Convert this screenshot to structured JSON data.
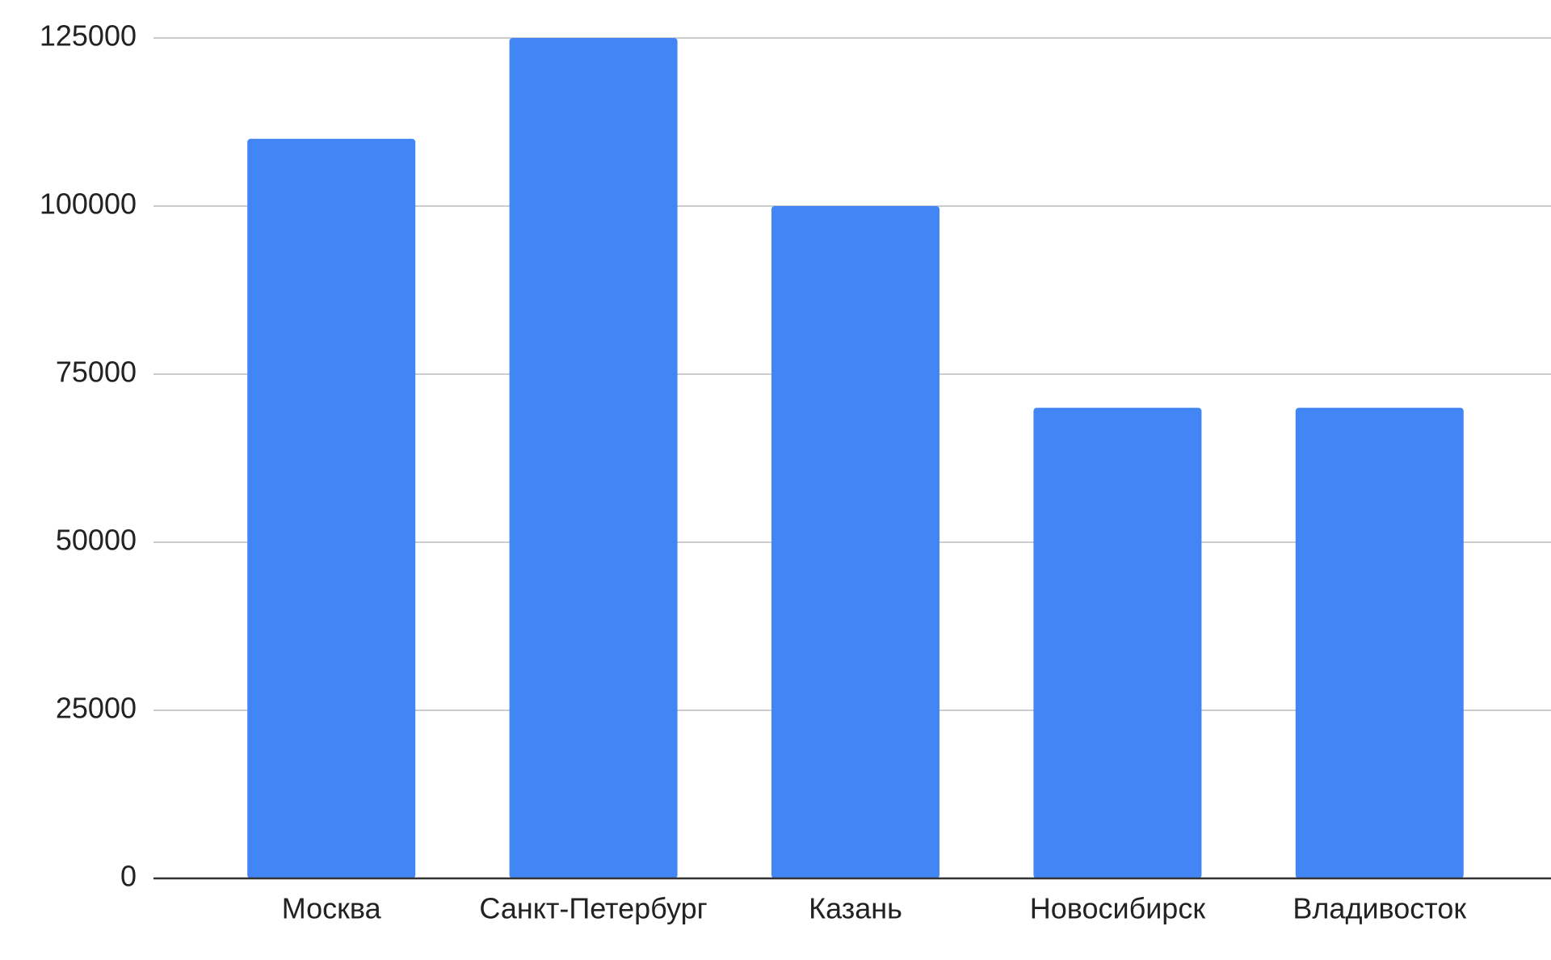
{
  "chart_data": {
    "type": "bar",
    "categories": [
      "Москва",
      "Санкт-Петербург",
      "Казань",
      "Новосибирск",
      "Владивосток"
    ],
    "values": [
      110000,
      125000,
      100000,
      70000,
      70000
    ],
    "color": "#4285f4",
    "ylim": [
      0,
      125000
    ],
    "yticks": [
      0,
      25000,
      50000,
      75000,
      100000,
      125000
    ],
    "grid": true
  }
}
